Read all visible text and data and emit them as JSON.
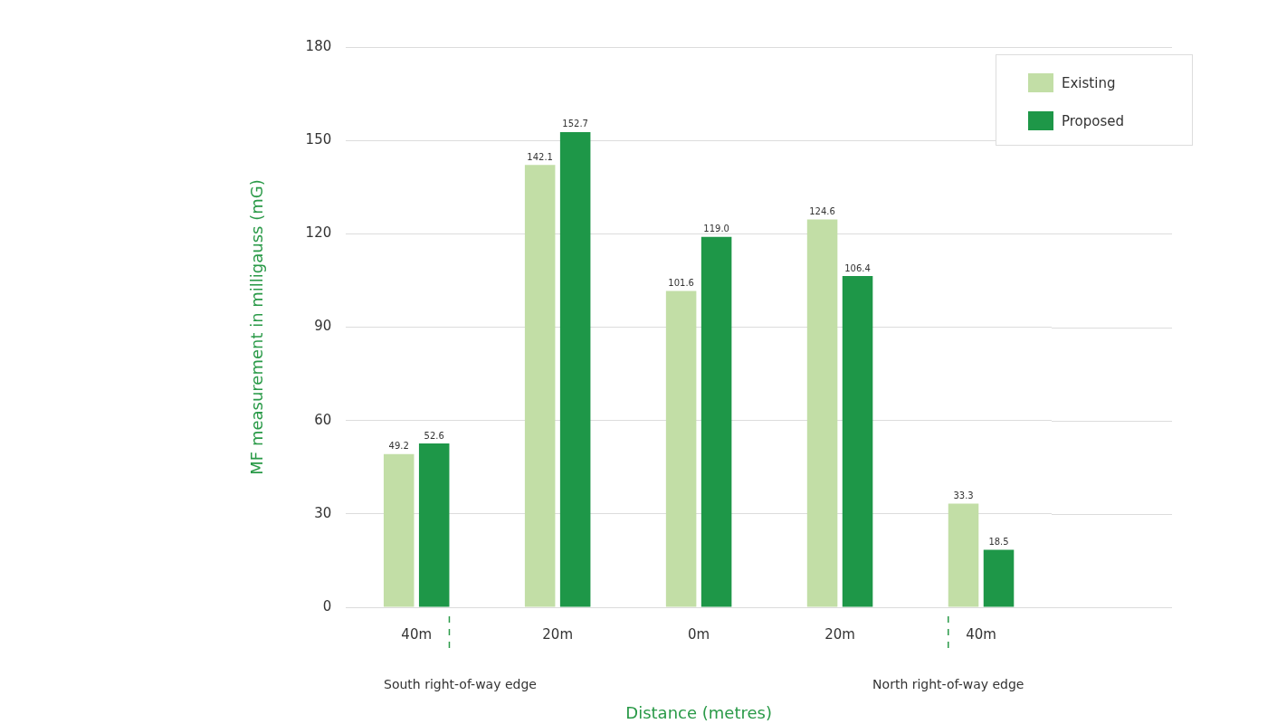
{
  "chart_data": {
    "type": "bar",
    "xlabel": "Distance (metres)",
    "ylabel": "MF measurement in milligauss (mG)",
    "categories": [
      "40m",
      "20m",
      "0m",
      "20m",
      "40m"
    ],
    "series": [
      {
        "name": "Existing",
        "color": "#c2dea6",
        "values": [
          49.2,
          142.1,
          101.6,
          124.6,
          33.3
        ],
        "value_labels": [
          "49.2",
          "142.1",
          "101.6",
          "124.6",
          "33.3"
        ]
      },
      {
        "name": "Proposed",
        "color": "#1e9748",
        "values": [
          52.6,
          152.7,
          119.0,
          106.4,
          18.5
        ],
        "value_labels": [
          "52.6",
          "152.7",
          "119.0",
          "106.4",
          "18.5"
        ]
      }
    ],
    "ylim": [
      0,
      180
    ],
    "yticks": [
      0,
      30,
      60,
      90,
      120,
      150,
      180
    ],
    "grid": "y",
    "legend": "top right",
    "annotations": [
      "South right-of-way edge",
      "North right-of-way edge"
    ]
  }
}
